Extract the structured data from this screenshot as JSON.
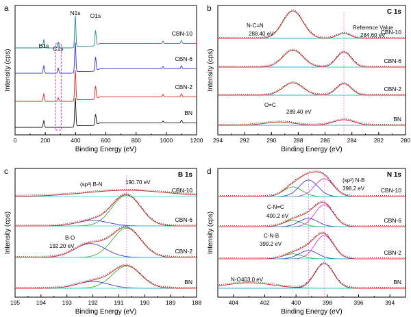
{
  "chart_data": [
    {
      "panel": "a",
      "type": "line",
      "xlabel": "Binding Energy (eV)",
      "ylabel": "Intensity (cps)",
      "xlim": [
        0,
        1200
      ],
      "xticks": [
        "0",
        "200",
        "400",
        "600",
        "800",
        "1000",
        "1200"
      ],
      "peak_labels": [
        {
          "text": "B1s",
          "x": 190
        },
        {
          "text": "C1s",
          "x": 285
        },
        {
          "text": "N1s",
          "x": 398
        },
        {
          "text": "O1s",
          "x": 532
        }
      ],
      "series": [
        {
          "name": "CBN-10",
          "color": "#1a8a8a",
          "offset": 3,
          "peaks": [
            [
              190,
              0.55
            ],
            [
              285,
              0.4
            ],
            [
              398,
              2.1
            ],
            [
              532,
              1.0
            ],
            [
              978,
              0.15
            ],
            [
              1100,
              0.2
            ]
          ]
        },
        {
          "name": "CBN-6",
          "color": "#3030d0",
          "offset": 2,
          "peaks": [
            [
              190,
              0.5
            ],
            [
              285,
              0.35
            ],
            [
              398,
              2.0
            ],
            [
              532,
              0.9
            ],
            [
              978,
              0.15
            ],
            [
              1100,
              0.2
            ]
          ]
        },
        {
          "name": "CBN-2",
          "color": "#e02020",
          "offset": 1,
          "peaks": [
            [
              190,
              0.5
            ],
            [
              285,
              0.25
            ],
            [
              398,
              2.0
            ],
            [
              532,
              0.85
            ],
            [
              978,
              0.15
            ],
            [
              1100,
              0.2
            ]
          ]
        },
        {
          "name": "BN",
          "color": "#101010",
          "offset": 0,
          "peaks": [
            [
              190,
              0.45
            ],
            [
              398,
              1.9
            ],
            [
              532,
              0.7
            ],
            [
              978,
              0.12
            ],
            [
              1100,
              0.18
            ]
          ]
        }
      ]
    },
    {
      "panel": "b",
      "type": "line",
      "title": "C 1s",
      "xlabel": "Binding Energy (eV)",
      "ylabel": "Intensity (cps)",
      "xlim": [
        294,
        280
      ],
      "xticks": [
        "294",
        "292",
        "290",
        "288",
        "286",
        "284",
        "282",
        "280"
      ],
      "reference_line": 284.6,
      "annotations": [
        {
          "text": "N-C=N",
          "x": 288.4
        },
        {
          "text": "288.40 eV",
          "x": 288.4
        },
        {
          "text": "Reference Value",
          "x": 284.6
        },
        {
          "text": "284.60 eV",
          "x": 284.6
        },
        {
          "text": "O=C",
          "x": 289.4
        },
        {
          "text": "289.40 eV",
          "x": 289.4
        }
      ],
      "series": [
        {
          "name": "CBN-10",
          "offset": 3,
          "peaks": [
            [
              288.4,
              1.0,
              0.75
            ],
            [
              284.6,
              0.18,
              0.5
            ]
          ]
        },
        {
          "name": "CBN-6",
          "offset": 2,
          "peaks": [
            [
              288.4,
              0.62,
              0.75
            ],
            [
              284.6,
              0.55,
              0.55
            ]
          ]
        },
        {
          "name": "CBN-2",
          "offset": 1,
          "peaks": [
            [
              288.4,
              0.45,
              0.75
            ],
            [
              284.6,
              0.42,
              0.55
            ]
          ]
        },
        {
          "name": "BN",
          "offset": 0,
          "peaks": [
            [
              289.4,
              0.12,
              1.1
            ],
            [
              284.6,
              0.2,
              0.8
            ]
          ]
        }
      ]
    },
    {
      "panel": "c",
      "type": "line",
      "title": "B 1s",
      "xlabel": "Binding Energy (eV)",
      "ylabel": "Intensity (cps)",
      "xlim": [
        195,
        188
      ],
      "xticks": [
        "195",
        "194",
        "193",
        "192",
        "191",
        "190",
        "189",
        "188"
      ],
      "reference_line": 190.7,
      "annotations": [
        {
          "text": "(sp³) B-N",
          "x": 191.5
        },
        {
          "text": "190.70 eV",
          "x": 190.2
        },
        {
          "text": "B-O",
          "x": 192.3
        },
        {
          "text": "192.20 eV",
          "x": 192.2
        }
      ],
      "series": [
        {
          "name": "CBN-10",
          "offset": 3,
          "peaks": [
            [
              190.7,
              0.2,
              1.6
            ]
          ]
        },
        {
          "name": "CBN-6",
          "offset": 2,
          "peaks": [
            [
              190.7,
              1.0,
              0.55
            ],
            [
              192.0,
              0.18,
              0.6
            ]
          ]
        },
        {
          "name": "CBN-2",
          "offset": 1,
          "peaks": [
            [
              190.7,
              0.95,
              0.55
            ],
            [
              192.1,
              0.45,
              0.6
            ]
          ]
        },
        {
          "name": "BN",
          "offset": 0,
          "peaks": [
            [
              190.7,
              0.72,
              0.55
            ],
            [
              192.0,
              0.22,
              0.6
            ]
          ]
        }
      ]
    },
    {
      "panel": "d",
      "type": "line",
      "title": "N 1s",
      "xlabel": "Binding Energy (eV)",
      "ylabel": "Intensity (cps)",
      "xlim": [
        405,
        393
      ],
      "xticks": [
        "404",
        "402",
        "400",
        "398",
        "396",
        "394"
      ],
      "reference_lines": [
        400.2,
        399.2,
        398.2
      ],
      "annotations": [
        {
          "text": "C-N=C",
          "x": 400.2
        },
        {
          "text": "400.2 eV",
          "x": 400.2
        },
        {
          "text": "(sp³) N-B",
          "x": 398.2
        },
        {
          "text": "398.2 eV",
          "x": 398.2
        },
        {
          "text": "C-N-B",
          "x": 399.2
        },
        {
          "text": "399.2 eV",
          "x": 399.2
        },
        {
          "text": "N-O",
          "x": 403.0
        },
        {
          "text": "403.0 eV",
          "x": 403.0
        }
      ],
      "series": [
        {
          "name": "CBN-10",
          "offset": 3,
          "peaks": [
            [
              400.2,
              0.35,
              0.6
            ],
            [
              399.2,
              0.6,
              0.6
            ],
            [
              398.2,
              0.65,
              0.6
            ]
          ]
        },
        {
          "name": "CBN-6",
          "offset": 2,
          "peaks": [
            [
              400.2,
              0.22,
              0.6
            ],
            [
              399.2,
              0.3,
              0.6
            ],
            [
              398.2,
              0.8,
              0.6
            ]
          ]
        },
        {
          "name": "CBN-2",
          "offset": 1,
          "peaks": [
            [
              400.2,
              0.18,
              0.6
            ],
            [
              399.2,
              0.3,
              0.6
            ],
            [
              398.2,
              0.85,
              0.6
            ]
          ]
        },
        {
          "name": "BN",
          "offset": 0,
          "peaks": [
            [
              403.0,
              0.2,
              1.5
            ],
            [
              398.2,
              0.9,
              0.6
            ]
          ]
        }
      ]
    }
  ],
  "panel_letters": [
    "a",
    "b",
    "c",
    "d"
  ]
}
